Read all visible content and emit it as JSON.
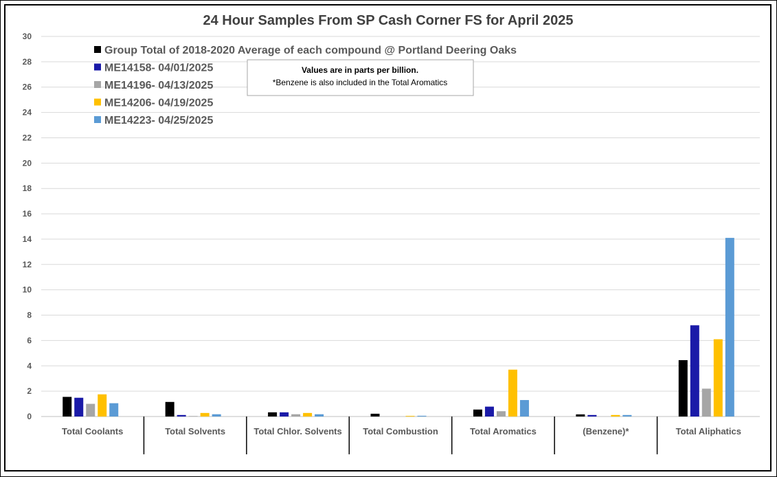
{
  "chart_data": {
    "type": "bar",
    "title": "24 Hour Samples From SP Cash Corner FS for April 2025",
    "xlabel": "",
    "ylabel": "",
    "ylim": [
      0,
      30
    ],
    "yticks": [
      0,
      2,
      4,
      6,
      8,
      10,
      12,
      14,
      16,
      18,
      20,
      22,
      24,
      26,
      28,
      30
    ],
    "grid": true,
    "legend_position": "top-left",
    "categories": [
      "Total Coolants",
      "Total Solvents",
      "Total Chlor. Solvents",
      "Total Combustion",
      "Total Aromatics",
      "(Benzene)*",
      "Total Aliphatics"
    ],
    "series": [
      {
        "name": "Group Total of 2018-2020 Average of each compound @ Portland Deering Oaks",
        "color": "#000000",
        "values": [
          1.55,
          1.15,
          0.33,
          0.22,
          0.55,
          0.17,
          4.45
        ]
      },
      {
        "name": "ME14158- 04/01/2025",
        "color": "#1a1aa8",
        "values": [
          1.48,
          0.12,
          0.33,
          0.0,
          0.78,
          0.12,
          7.2
        ]
      },
      {
        "name": "ME14196- 04/13/2025",
        "color": "#a6a6a6",
        "values": [
          1.0,
          0.04,
          0.18,
          0.0,
          0.42,
          0.0,
          2.2
        ]
      },
      {
        "name": "ME14206- 04/19/2025",
        "color": "#ffc000",
        "values": [
          1.75,
          0.28,
          0.28,
          0.05,
          3.7,
          0.12,
          6.1
        ]
      },
      {
        "name": "ME14223- 04/25/2025",
        "color": "#5b9bd5",
        "values": [
          1.05,
          0.18,
          0.18,
          0.06,
          1.3,
          0.12,
          14.1
        ]
      }
    ],
    "annotation": {
      "line1": "Values are in parts per billion.",
      "line2": "*Benzene is also included in the Total Aromatics"
    }
  }
}
